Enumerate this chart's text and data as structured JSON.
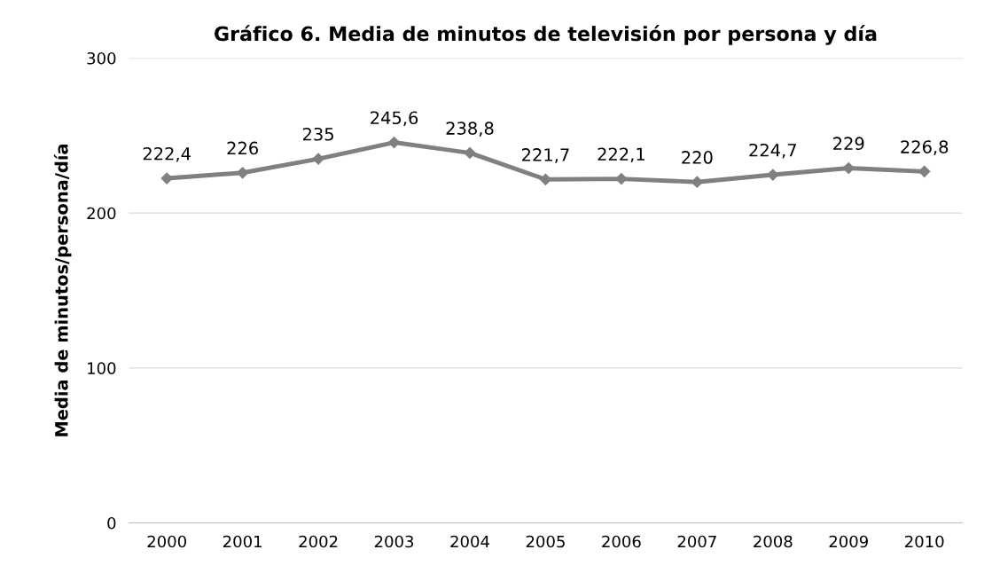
{
  "chart_data": {
    "type": "line",
    "title": "Gráfico 6. Media de minutos de televisión por persona y día",
    "ylabel": "Media de minutos/persona/día",
    "categories": [
      "2000",
      "2001",
      "2002",
      "2003",
      "2004",
      "2005",
      "2006",
      "2007",
      "2008",
      "2009",
      "2010"
    ],
    "series": [
      {
        "color": "#808080",
        "values": [
          222.4,
          226,
          235,
          245.6,
          238.8,
          221.7,
          222.1,
          220,
          224.7,
          229,
          226.8
        ],
        "value_labels": [
          "222,4",
          "226",
          "235",
          "245,6",
          "238,8",
          "221,7",
          "222,1",
          "220",
          "224,7",
          "229",
          "226,8"
        ]
      }
    ],
    "ylim": [
      0,
      300
    ],
    "yticks": [
      0,
      100,
      200,
      300
    ],
    "grid": "y",
    "marker": "diamond",
    "line_style": "solid",
    "legend": false
  }
}
